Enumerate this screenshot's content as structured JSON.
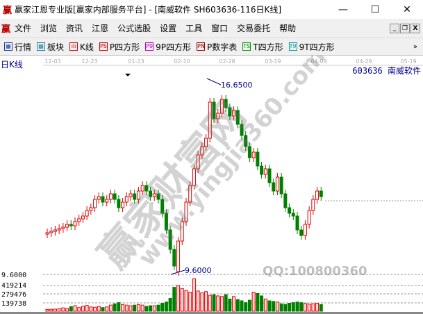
{
  "window": {
    "title": "赢家江恩专业版[赢家内部服务平台] - [南威软件  SH603636-116日K线]",
    "minimize": "—",
    "maximize": "☐",
    "close": "✕"
  },
  "menu": [
    "文件",
    "浏览",
    "资讯",
    "江恩",
    "公式选股",
    "设置",
    "工具",
    "窗口",
    "交易委托",
    "帮助"
  ],
  "mdi": [
    "_",
    "❐",
    "X"
  ],
  "toolbar": [
    {
      "icon": "▦",
      "label": "行情",
      "color": "#1a3a9a"
    },
    {
      "icon": "▩",
      "label": "板块",
      "color": "#1a7a9a"
    },
    {
      "icon": "ılı",
      "label": "K线",
      "color": "#d00"
    },
    {
      "icon": "PS",
      "label": "P四方形",
      "color": "#c00"
    },
    {
      "icon": "P9",
      "label": "9P四方形",
      "color": "#b0b"
    },
    {
      "icon": "PN",
      "label": "P数字表",
      "color": "#900"
    },
    {
      "icon": "TS",
      "label": "T四方形",
      "color": "#090"
    },
    {
      "icon": "T9",
      "label": "9T四方形",
      "color": "#09a"
    }
  ],
  "toolbar_more": "»",
  "chart_data": {
    "type": "candlestick",
    "title": "日K线",
    "stock": "603636 南威软件",
    "date_ticks": [
      "12-03",
      "12-23",
      "01-13",
      "02-10",
      "02-28",
      "03-19",
      "04-09",
      "04-29",
      "05-19"
    ],
    "price_label": "9.6000",
    "high_annotation": "16.6500",
    "low_annotation": "9.6000",
    "ylim": [
      9.6,
      16.65
    ],
    "volume_ticks": [
      "419214",
      "279476",
      "139738"
    ],
    "volume_tick_values": [
      419214,
      279476,
      139738
    ],
    "watermark": [
      "赢家财富网",
      "www.yingjia360.com",
      "QQ:100800360"
    ],
    "up_color": "#e00000",
    "down_color": "#008000",
    "open": [
      11.05,
      11.1,
      11.15,
      11.2,
      11.25,
      11.3,
      11.4,
      11.35,
      11.5,
      11.6,
      11.7,
      11.9,
      12.0,
      12.3,
      12.4,
      12.2,
      12.3,
      12.5,
      12.3,
      12.0,
      12.2,
      12.4,
      12.5,
      12.3,
      12.6,
      12.8,
      12.6,
      12.4,
      12.5,
      12.3,
      11.8,
      11.2,
      10.5,
      9.7,
      10.8,
      11.5,
      12.2,
      12.8,
      13.4,
      13.9,
      14.2,
      14.5,
      15.8,
      15.2,
      15.4,
      15.9,
      15.6,
      15.3,
      15.5,
      15.0,
      14.6,
      14.2,
      13.8,
      14.0,
      13.5,
      13.2,
      13.4,
      12.9,
      12.6,
      13.1,
      12.5,
      12.0,
      11.8,
      11.7,
      11.2,
      11.0,
      11.4,
      11.9,
      12.3,
      12.6
    ],
    "close": [
      11.1,
      11.15,
      11.2,
      11.25,
      11.3,
      11.4,
      11.35,
      11.5,
      11.6,
      11.7,
      11.9,
      12.0,
      12.3,
      12.4,
      12.2,
      12.3,
      12.5,
      12.3,
      12.0,
      12.2,
      12.4,
      12.5,
      12.3,
      12.6,
      12.8,
      12.6,
      12.4,
      12.5,
      12.3,
      11.8,
      11.2,
      10.5,
      9.9,
      10.8,
      11.5,
      12.2,
      12.8,
      13.4,
      13.9,
      14.2,
      14.5,
      15.8,
      15.2,
      15.4,
      15.9,
      15.6,
      15.3,
      15.5,
      15.0,
      14.6,
      14.2,
      13.8,
      14.0,
      13.5,
      13.2,
      13.4,
      12.9,
      12.6,
      13.1,
      12.5,
      12.0,
      11.8,
      11.7,
      11.2,
      11.0,
      11.4,
      11.9,
      12.3,
      12.6,
      12.4
    ],
    "volume": [
      30000,
      32000,
      35000,
      40000,
      55000,
      45000,
      75000,
      90000,
      60000,
      80000,
      95000,
      70000,
      65000,
      80000,
      60000,
      70000,
      100000,
      120000,
      140000,
      110000,
      100000,
      90000,
      100000,
      110000,
      100000,
      80000,
      90000,
      90000,
      100000,
      130000,
      150000,
      210000,
      390000,
      420000,
      370000,
      340000,
      310000,
      530000,
      330000,
      300000,
      320000,
      260000,
      270000,
      250000,
      240000,
      270000,
      200000,
      240000,
      190000,
      170000,
      140000,
      180000,
      310000,
      290000,
      250000,
      200000,
      170000,
      160000,
      150000,
      120000,
      110000,
      130000,
      140000,
      150000,
      140000,
      125000,
      115000,
      120000,
      130000,
      110000
    ]
  }
}
